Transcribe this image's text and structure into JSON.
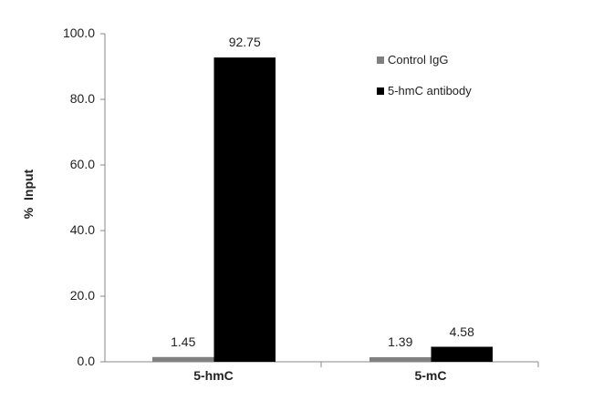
{
  "chart_data": {
    "type": "bar",
    "title": "",
    "xlabel": "",
    "ylabel": "%  Input",
    "ylim": [
      0,
      100
    ],
    "yticks": [
      "0.0",
      "20.0",
      "40.0",
      "60.0",
      "80.0",
      "100.0"
    ],
    "categories": [
      "5-hmC",
      "5-mC"
    ],
    "series": [
      {
        "name": "Control IgG",
        "color": "#808080",
        "values": [
          1.45,
          1.39
        ],
        "labels": [
          "1.45",
          "1.39"
        ]
      },
      {
        "name": "5-hmC antibody",
        "color": "#000000",
        "values": [
          92.75,
          4.58
        ],
        "labels": [
          "92.75",
          "4.58"
        ]
      }
    ],
    "grid": false,
    "legend_position": "upper right (inside)"
  }
}
